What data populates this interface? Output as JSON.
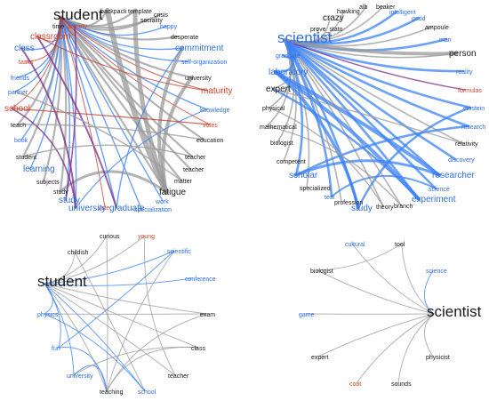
{
  "colors": {
    "black": "#1a1a1a",
    "blue": "#2f6fe0",
    "red": "#d0442c",
    "gray_edge": "#9a9a9a",
    "blue_edge": "#3b82f6",
    "red_edge": "#c0392b",
    "purple_edge": "#7a2a8a"
  },
  "panels": [
    {
      "id": "panel-student-large",
      "center": "student",
      "nodes": [
        {
          "label": "student",
          "color": "black",
          "size": "xl"
        },
        {
          "label": "backpack",
          "color": "black"
        },
        {
          "label": "template",
          "color": "black"
        },
        {
          "label": "sociality",
          "color": "black"
        },
        {
          "label": "crisis",
          "color": "black"
        },
        {
          "label": "happy",
          "color": "blue"
        },
        {
          "label": "desperate",
          "color": "black"
        },
        {
          "label": "commitment",
          "color": "blue",
          "size": "m"
        },
        {
          "label": "self-organization",
          "color": "blue"
        },
        {
          "label": "university",
          "color": "black"
        },
        {
          "label": "maturity",
          "color": "red",
          "size": "m"
        },
        {
          "label": "knowledge",
          "color": "blue"
        },
        {
          "label": "votes",
          "color": "red"
        },
        {
          "label": "education",
          "color": "black"
        },
        {
          "label": "teacher",
          "color": "black"
        },
        {
          "label": "teacher",
          "color": "black"
        },
        {
          "label": "matter",
          "color": "black"
        },
        {
          "label": "fatigue",
          "color": "black",
          "size": "m"
        },
        {
          "label": "work",
          "color": "blue"
        },
        {
          "label": "specialization",
          "color": "blue"
        },
        {
          "label": "graduate",
          "color": "blue",
          "size": "m"
        },
        {
          "label": "vote",
          "color": "red"
        },
        {
          "label": "university",
          "color": "blue",
          "size": "m"
        },
        {
          "label": "study",
          "color": "blue",
          "size": "m"
        },
        {
          "label": "study",
          "color": "black"
        },
        {
          "label": "subjects",
          "color": "black"
        },
        {
          "label": "learning",
          "color": "blue",
          "size": "m"
        },
        {
          "label": "student",
          "color": "black"
        },
        {
          "label": "book",
          "color": "blue"
        },
        {
          "label": "teach",
          "color": "black"
        },
        {
          "label": "school",
          "color": "red",
          "size": "m"
        },
        {
          "label": "partner",
          "color": "blue"
        },
        {
          "label": "friends",
          "color": "blue"
        },
        {
          "label": "tasks",
          "color": "red"
        },
        {
          "label": "class",
          "color": "blue",
          "size": "m"
        },
        {
          "label": "classroom",
          "color": "red",
          "size": "m"
        },
        {
          "label": "time",
          "color": "black"
        },
        {
          "label": "anxiety",
          "color": "red"
        }
      ]
    },
    {
      "id": "panel-scientist-large",
      "center": "scientist",
      "nodes": [
        {
          "label": "scientist",
          "color": "blue",
          "size": "xl"
        },
        {
          "label": "prove_stato",
          "color": "black"
        },
        {
          "label": "crazy",
          "color": "black",
          "size": "m"
        },
        {
          "label": "hawking",
          "color": "black"
        },
        {
          "label": "alb",
          "color": "black"
        },
        {
          "label": "beaker",
          "color": "black"
        },
        {
          "label": "intelligent",
          "color": "blue"
        },
        {
          "label": "good",
          "color": "blue"
        },
        {
          "label": "ampoule",
          "color": "black"
        },
        {
          "label": "man",
          "color": "blue"
        },
        {
          "label": "person",
          "color": "black",
          "size": "m"
        },
        {
          "label": "reality",
          "color": "blue"
        },
        {
          "label": "formulas",
          "color": "red"
        },
        {
          "label": "einstein",
          "color": "blue"
        },
        {
          "label": "research",
          "color": "blue"
        },
        {
          "label": "relativity",
          "color": "black"
        },
        {
          "label": "discovery",
          "color": "blue"
        },
        {
          "label": "researcher",
          "color": "blue",
          "size": "m"
        },
        {
          "label": "science",
          "color": "blue"
        },
        {
          "label": "experiment",
          "color": "blue",
          "size": "m"
        },
        {
          "label": "branch",
          "color": "black"
        },
        {
          "label": "theory",
          "color": "black"
        },
        {
          "label": "study",
          "color": "blue",
          "size": "m"
        },
        {
          "label": "profession",
          "color": "black"
        },
        {
          "label": "test",
          "color": "blue"
        },
        {
          "label": "specialized",
          "color": "black"
        },
        {
          "label": "scholar",
          "color": "blue",
          "size": "m"
        },
        {
          "label": "competent",
          "color": "black"
        },
        {
          "label": "biologist",
          "color": "black"
        },
        {
          "label": "mathematical",
          "color": "black"
        },
        {
          "label": "physical",
          "color": "black"
        },
        {
          "label": "expert",
          "color": "black",
          "size": "m"
        },
        {
          "label": "laboratory",
          "color": "blue",
          "size": "m"
        },
        {
          "label": "graduate",
          "color": "blue"
        }
      ]
    },
    {
      "id": "panel-student-small",
      "center": "student",
      "nodes": [
        {
          "label": "student",
          "color": "black",
          "size": "xl"
        },
        {
          "label": "childish",
          "color": "black"
        },
        {
          "label": "curious",
          "color": "black"
        },
        {
          "label": "young",
          "color": "red"
        },
        {
          "label": "scientific",
          "color": "blue"
        },
        {
          "label": "conference",
          "color": "blue"
        },
        {
          "label": "exam",
          "color": "black"
        },
        {
          "label": "class",
          "color": "black"
        },
        {
          "label": "teacher",
          "color": "black"
        },
        {
          "label": "school",
          "color": "blue"
        },
        {
          "label": "teaching",
          "color": "black"
        },
        {
          "label": "university",
          "color": "blue"
        },
        {
          "label": "fun",
          "color": "blue"
        },
        {
          "label": "physics",
          "color": "blue"
        }
      ]
    },
    {
      "id": "panel-scientist-small",
      "center": "scientist",
      "nodes": [
        {
          "label": "scientist",
          "color": "black",
          "size": "xl"
        },
        {
          "label": "cultural",
          "color": "blue"
        },
        {
          "label": "tool",
          "color": "black"
        },
        {
          "label": "biologist",
          "color": "black"
        },
        {
          "label": "science",
          "color": "blue"
        },
        {
          "label": "game",
          "color": "blue"
        },
        {
          "label": "physicist",
          "color": "black"
        },
        {
          "label": "expert",
          "color": "black"
        },
        {
          "label": "coat",
          "color": "red"
        },
        {
          "label": "sounds",
          "color": "black"
        }
      ]
    }
  ]
}
